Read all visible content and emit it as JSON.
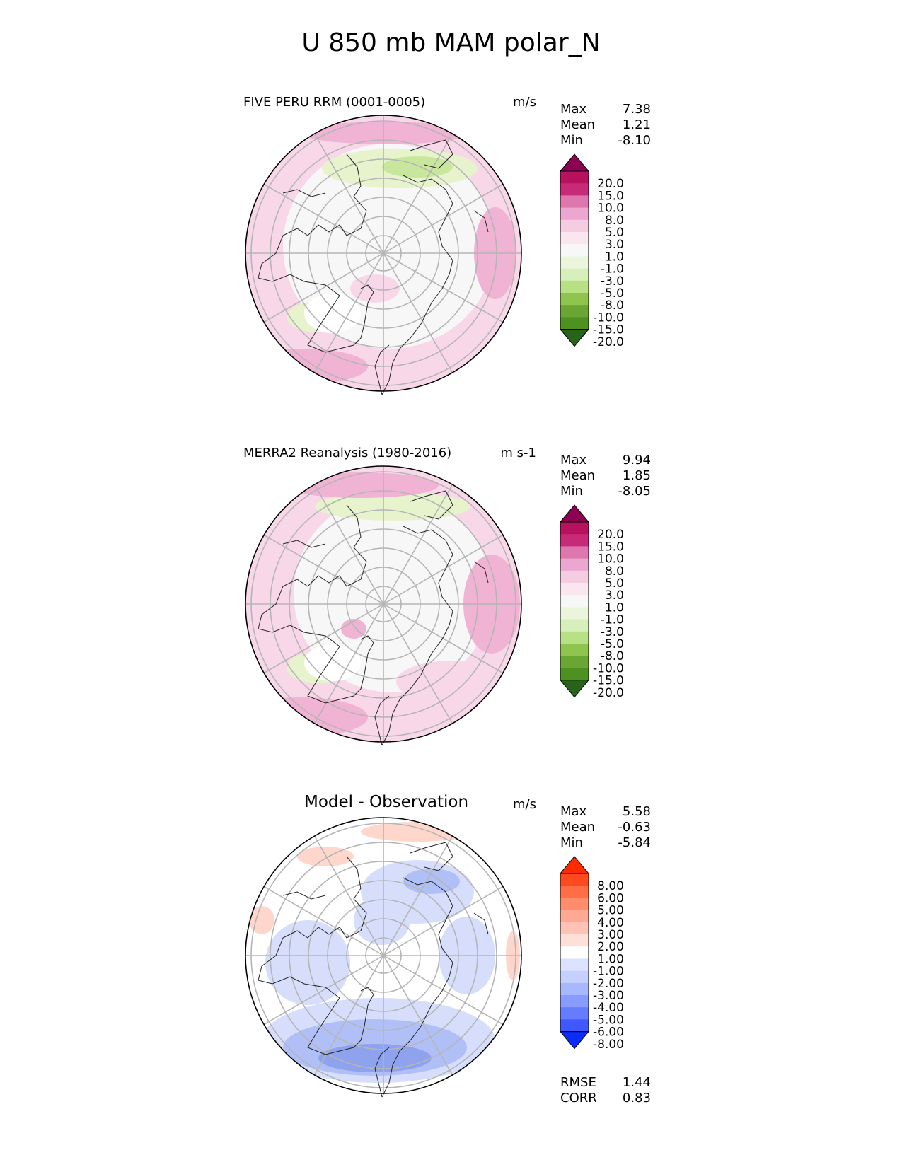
{
  "title": "U 850 mb MAM polar_N",
  "chart_data": [
    {
      "type": "heatmap",
      "projection": "north polar stereographic",
      "title": "FIVE PERU RRM (0001-0005)",
      "units": "m/s",
      "stats": [
        {
          "label": "Max",
          "value": "7.38"
        },
        {
          "label": "Mean",
          "value": "1.21"
        },
        {
          "label": "Min",
          "value": "-8.10"
        }
      ],
      "colorbar_ticks": [
        "20.0",
        "15.0",
        "10.0",
        "8.0",
        "5.0",
        "3.0",
        "1.0",
        "-1.0",
        "-3.0",
        "-5.0",
        "-8.0",
        "-10.0",
        "-15.0",
        "-20.0"
      ],
      "colormap": [
        "#8e0152",
        "#b8125e",
        "#c72a77",
        "#de77ae",
        "#eba7cf",
        "#f5cde3",
        "#fae6ef",
        "#f7f7f7",
        "#eaf5dc",
        "#d7efba",
        "#b8e186",
        "#8fc54f",
        "#6aa634",
        "#4d9221",
        "#276419"
      ]
    },
    {
      "type": "heatmap",
      "projection": "north polar stereographic",
      "title": "MERRA2 Reanalysis (1980-2016)",
      "units": "m s-1",
      "stats": [
        {
          "label": "Max",
          "value": "9.94"
        },
        {
          "label": "Mean",
          "value": "1.85"
        },
        {
          "label": "Min",
          "value": "-8.05"
        }
      ],
      "colorbar_ticks": [
        "20.0",
        "15.0",
        "10.0",
        "8.0",
        "5.0",
        "3.0",
        "1.0",
        "-1.0",
        "-3.0",
        "-5.0",
        "-8.0",
        "-10.0",
        "-15.0",
        "-20.0"
      ],
      "colormap": [
        "#8e0152",
        "#b8125e",
        "#c72a77",
        "#de77ae",
        "#eba7cf",
        "#f5cde3",
        "#fae6ef",
        "#f7f7f7",
        "#eaf5dc",
        "#d7efba",
        "#b8e186",
        "#8fc54f",
        "#6aa634",
        "#4d9221",
        "#276419"
      ]
    },
    {
      "type": "heatmap",
      "projection": "north polar stereographic",
      "title": "Model - Observation",
      "units": "m/s",
      "stats": [
        {
          "label": "Max",
          "value": "5.58"
        },
        {
          "label": "Mean",
          "value": "-0.63"
        },
        {
          "label": "Min",
          "value": "-5.84"
        }
      ],
      "colorbar_ticks": [
        "8.00",
        "6.00",
        "5.00",
        "4.00",
        "3.00",
        "2.00",
        "1.00",
        "-1.00",
        "-2.00",
        "-3.00",
        "-4.00",
        "-5.00",
        "-6.00",
        "-8.00"
      ],
      "colormap": [
        "#ff2a00",
        "#ff4a1f",
        "#ff6e45",
        "#ff8c6d",
        "#ffa894",
        "#ffc3b6",
        "#ffe0d9",
        "#ffffff",
        "#dde3ff",
        "#c5d0ff",
        "#a8b8ff",
        "#889bff",
        "#667cff",
        "#3f58ff",
        "#0a2cff"
      ],
      "extra_stats": [
        {
          "label": "RMSE",
          "value": "1.44"
        },
        {
          "label": "CORR",
          "value": "0.83"
        }
      ]
    }
  ],
  "colors": {
    "land_outline": "#222222",
    "grid": "#b5b5b5",
    "pink_light": "#f8d8e8",
    "pink_mid": "#f0b3d4",
    "pink_dark": "#e790c2",
    "green_light": "#e6f3cc",
    "green_mid": "#c9e79c",
    "blue_light": "#d6defc",
    "blue_mid": "#b0c0f6",
    "blue_dark": "#8fa2ee",
    "red_light": "#ffd6cc"
  }
}
